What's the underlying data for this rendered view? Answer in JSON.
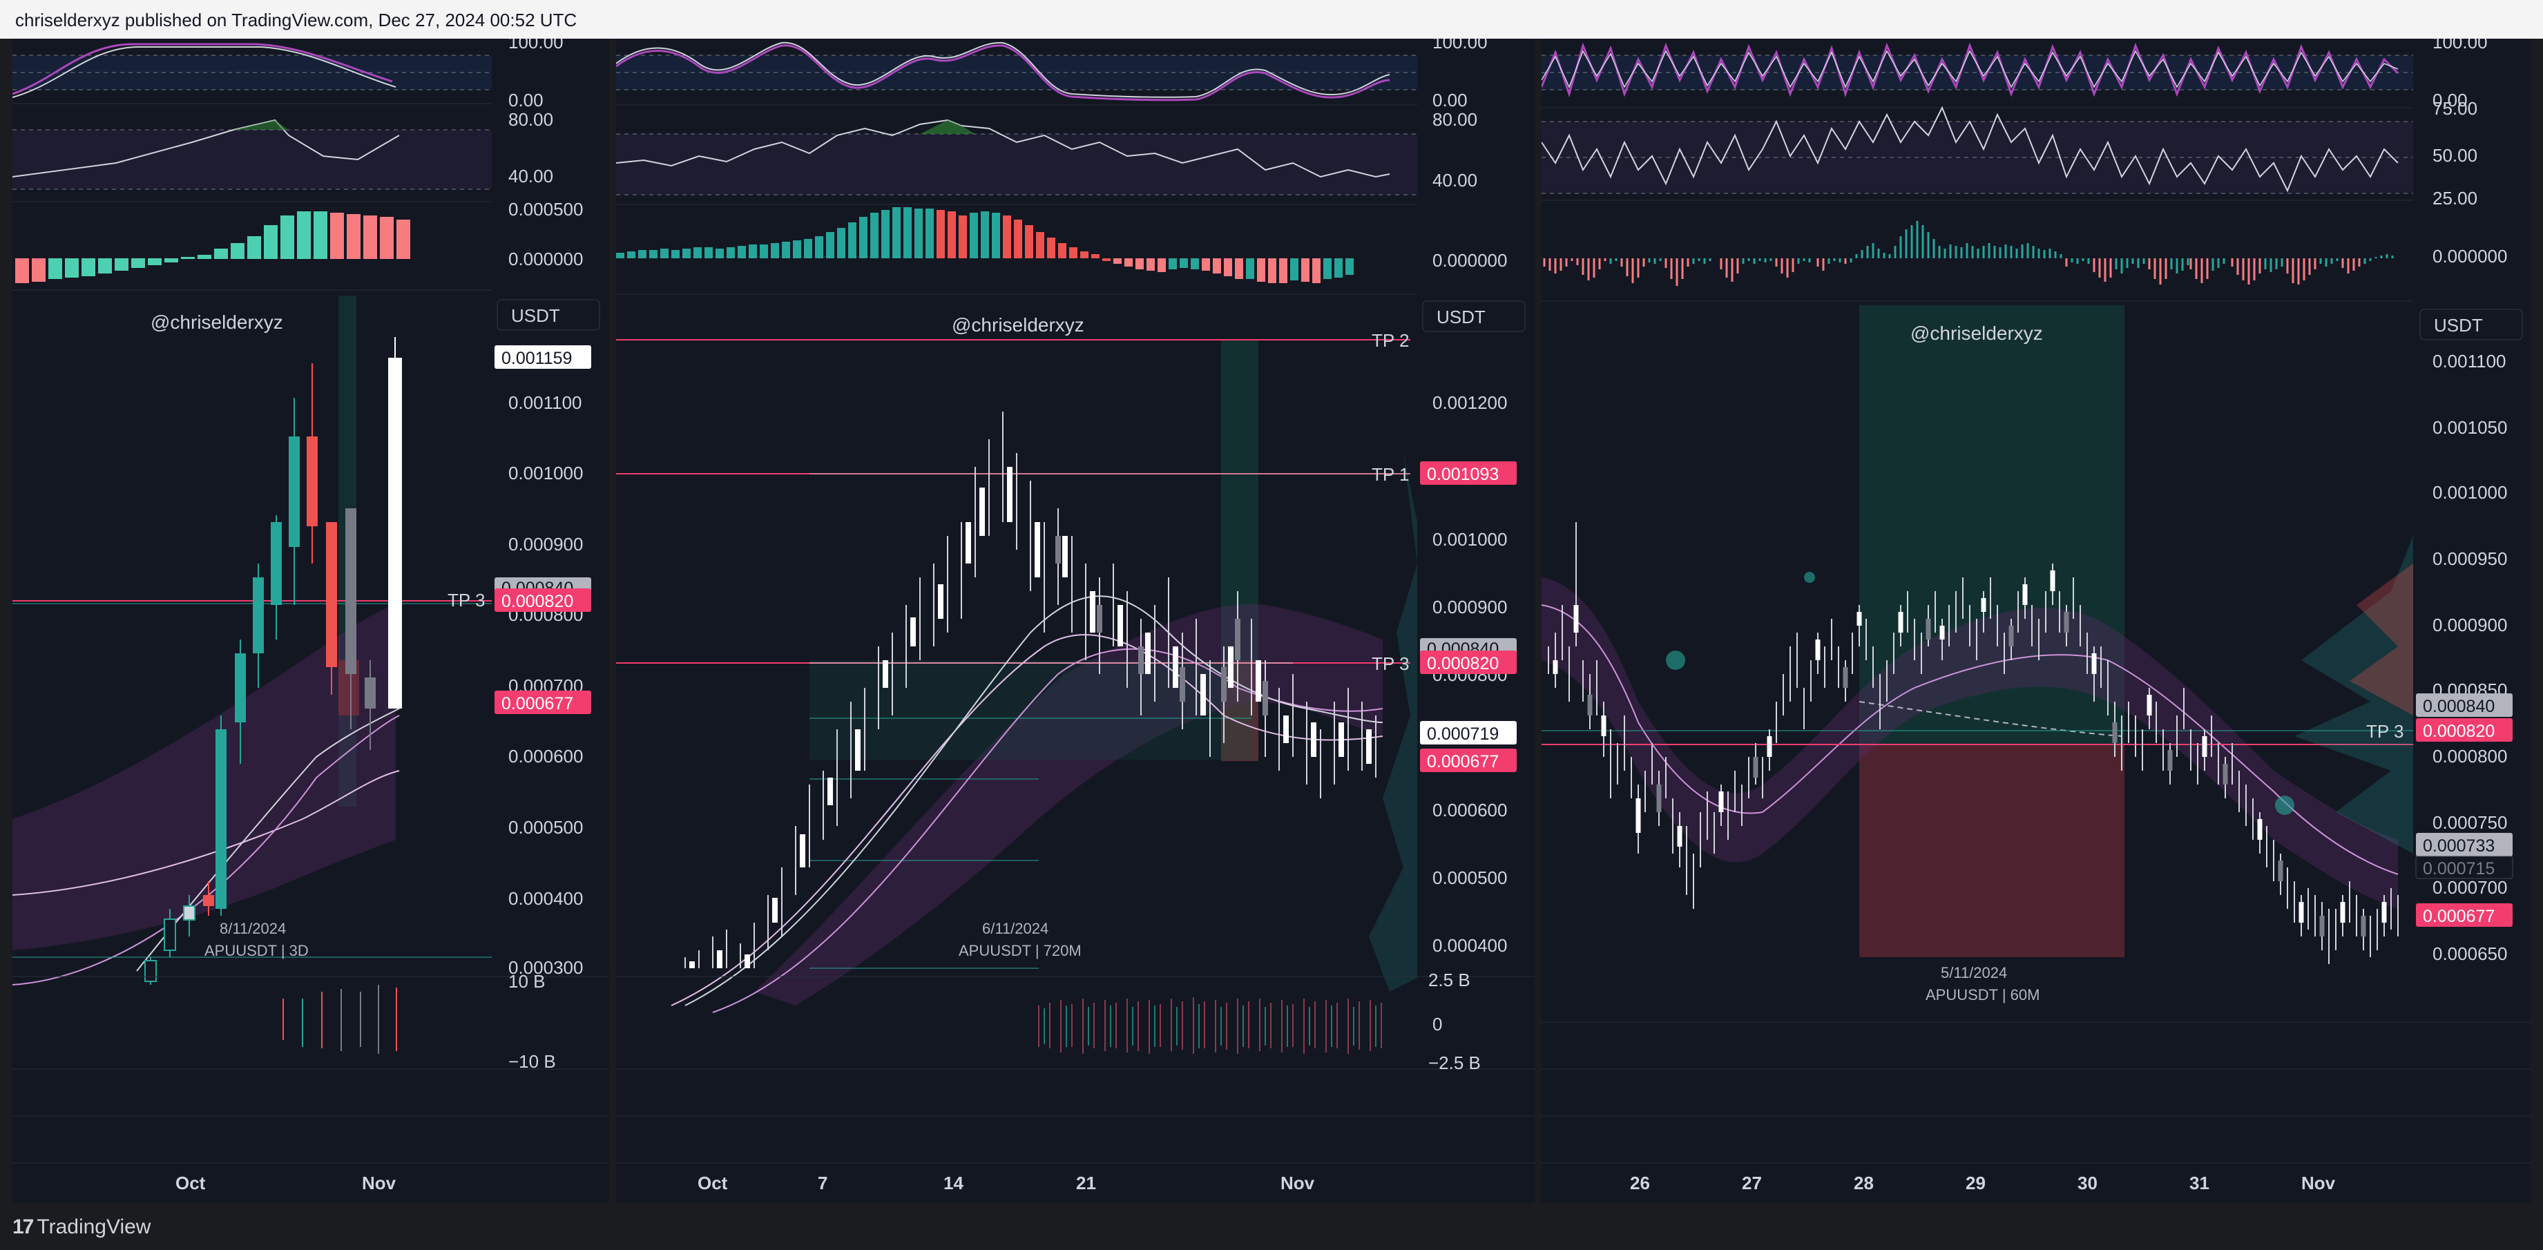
{
  "header": {
    "text": "chriselderxyz published on TradingView.com, Dec 27, 2024 00:52 UTC"
  },
  "footer": {
    "brand": "TradingView"
  },
  "colors": {
    "bg": "#131722",
    "up": "#26a69a",
    "down": "#ef5350",
    "tp_line": "#f23d6e",
    "accent": "#ab47bc"
  },
  "panels": [
    {
      "watermark": "@chriselderxyz",
      "currency": "USDT",
      "stoch_labels": [
        "100.00",
        "0.00"
      ],
      "rsi_labels": [
        "80.00",
        "40.00"
      ],
      "macd_labels": [
        "0.000500",
        "0.000000"
      ],
      "price_axis": [
        "0.001100",
        "0.001000",
        "0.000900",
        "0.000800",
        "0.000700",
        "0.000600",
        "0.000500",
        "0.000400",
        "0.000300"
      ],
      "tags": {
        "current": "0.001159",
        "grey": "0.000840",
        "tp3": "0.000820",
        "low": "0.000677"
      },
      "tp_labels": [
        "TP 3"
      ],
      "date_label": "8/11/2024",
      "symbol_label": "APUUSDT | 3D",
      "volume_axis": [
        "10 B",
        "−10 B"
      ],
      "time_axis": [
        "Oct",
        "Nov"
      ]
    },
    {
      "watermark": "@chriselderxyz",
      "currency": "USDT",
      "stoch_labels": [
        "100.00",
        "0.00"
      ],
      "rsi_labels": [
        "80.00",
        "40.00"
      ],
      "macd_labels": [
        "0.000000"
      ],
      "price_axis": [
        "0.001200",
        "0.001000",
        "0.000900",
        "0.000800",
        "0.000600",
        "0.000500",
        "0.000400"
      ],
      "tags": {
        "tp1": "0.001093",
        "grey": "0.000840",
        "tp3": "0.000820",
        "white": "0.000719",
        "low": "0.000677"
      },
      "tp_labels": [
        "TP 2",
        "TP 1",
        "TP 3"
      ],
      "date_label": "6/11/2024",
      "symbol_label": "APUUSDT | 720M",
      "volume_axis": [
        "2.5 B",
        "0",
        "−2.5 B"
      ],
      "time_axis": [
        "Oct",
        "7",
        "14",
        "21",
        "Nov"
      ]
    },
    {
      "watermark": "@chriselderxyz",
      "currency": "USDT",
      "stoch_labels": [
        "100.00",
        "0.00"
      ],
      "rsi_labels": [
        "75.00",
        "50.00",
        "25.00"
      ],
      "macd_labels": [
        "0.000000"
      ],
      "price_axis": [
        "0.001100",
        "0.001050",
        "0.001000",
        "0.000950",
        "0.000900",
        "0.000850",
        "0.000800",
        "0.000750",
        "0.000700",
        "0.000650"
      ],
      "tags": {
        "grey": "0.000840",
        "tp3": "0.000820",
        "grey2": "0.000733",
        "dark": "0.000715",
        "low": "0.000677"
      },
      "tp_labels": [
        "TP 3"
      ],
      "date_label": "5/11/2024",
      "symbol_label": "APUUSDT | 60M",
      "time_axis": [
        "26",
        "27",
        "28",
        "29",
        "30",
        "31",
        "Nov"
      ]
    }
  ]
}
